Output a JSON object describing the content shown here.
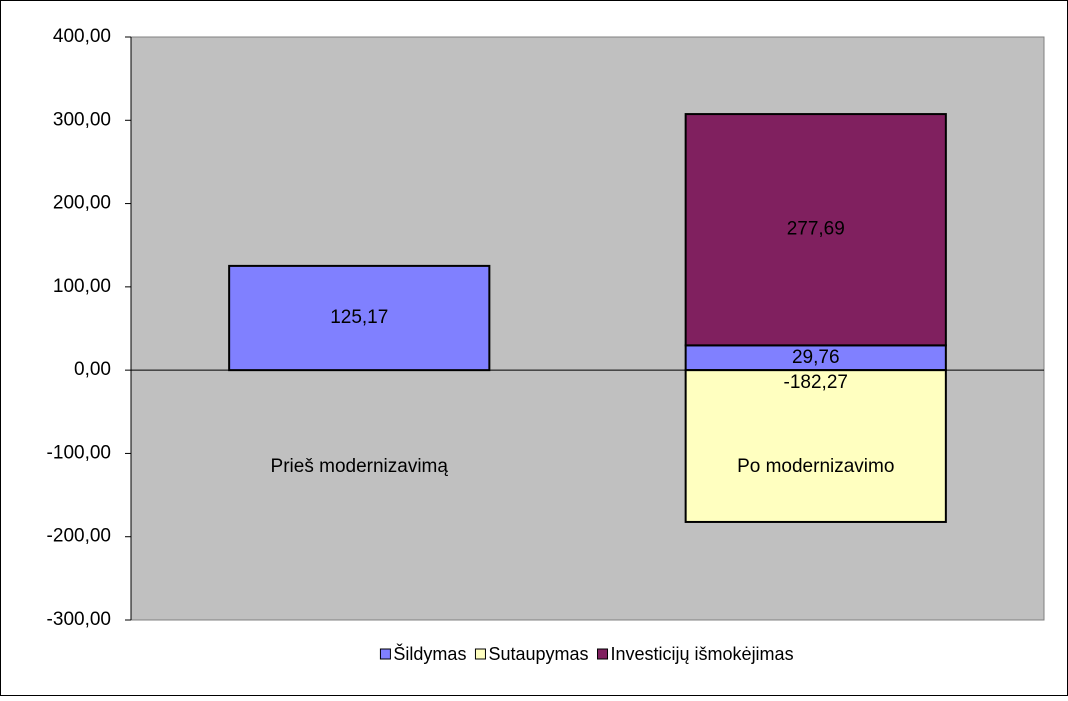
{
  "chart_data": {
    "type": "stacked_bar",
    "categories": [
      "Prieš modernizavimą",
      "Po modernizavimo"
    ],
    "series": [
      {
        "name": "Šildymas",
        "color": "#8080ff",
        "values": [
          125.17,
          29.76
        ],
        "value_labels": [
          "125,17",
          "29,76"
        ]
      },
      {
        "name": "Sutaupymas",
        "color": "#ffffc0",
        "values": [
          null,
          -182.27
        ],
        "value_labels": [
          null,
          "-182,27"
        ]
      },
      {
        "name": "Investicijų išmokėjimas",
        "color": "#80205f",
        "values": [
          null,
          277.69
        ],
        "value_labels": [
          null,
          "277,69"
        ]
      }
    ],
    "ylim": [
      -300,
      400
    ],
    "yticks": [
      {
        "value": -300,
        "label": "-300,00"
      },
      {
        "value": -200,
        "label": "-200,00"
      },
      {
        "value": -100,
        "label": "-100,00"
      },
      {
        "value": 0,
        "label": "0,00"
      },
      {
        "value": 100,
        "label": "100,00"
      },
      {
        "value": 200,
        "label": "200,00"
      },
      {
        "value": 300,
        "label": "300,00"
      },
      {
        "value": 400,
        "label": "400,00"
      }
    ],
    "grid": false,
    "plot_background": "#c0c0c0",
    "legend": "bottom"
  }
}
